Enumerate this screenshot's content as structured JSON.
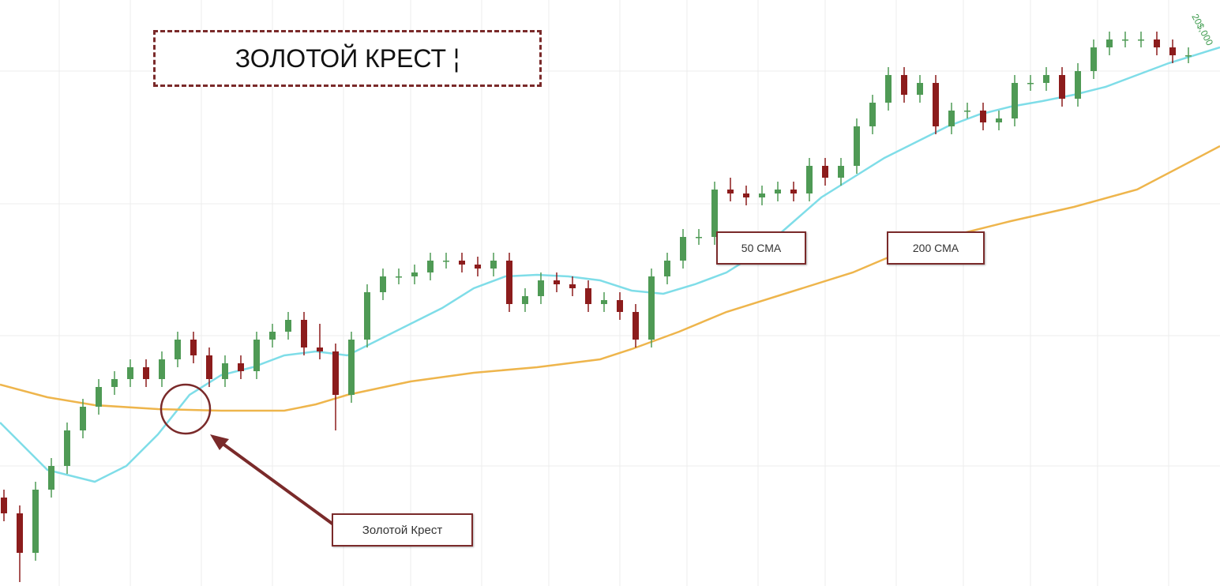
{
  "chart_data": {
    "type": "candlestick",
    "title": "ЗОЛОТОЙ КРЕСТ ¦",
    "corner_label": "20$,000",
    "xlim": [
      -0.25,
      77
    ],
    "ylim": [
      0,
      74.2
    ],
    "up_color": "#4f9a55",
    "down_color": "#8c1c1c",
    "candles": {
      "open": [
        11.2,
        9.2,
        4.2,
        12.2,
        15.2,
        19.7,
        22.7,
        25.2,
        26.2,
        27.7,
        26.2,
        28.7,
        31.2,
        29.2,
        26.2,
        28.2,
        27.2,
        31.2,
        32.2,
        33.7,
        30.2,
        29.7,
        24.2,
        31.2,
        37.2,
        39.2,
        39.2,
        39.7,
        41.2,
        41.2,
        40.7,
        40.2,
        41.2,
        35.7,
        36.7,
        38.7,
        38.2,
        37.7,
        35.7,
        36.2,
        34.7,
        31.2,
        39.2,
        41.2,
        44.2,
        44.2,
        50.2,
        49.7,
        49.2,
        49.7,
        50.2,
        49.7,
        53.2,
        51.7,
        53.2,
        58.2,
        61.2,
        64.7,
        62.2,
        63.7,
        58.2,
        60.2,
        60.2,
        58.7,
        59.2,
        63.7,
        63.7,
        64.7,
        61.7,
        65.2,
        68.2,
        69.2,
        69.2,
        69.2,
        68.2,
        67.2
      ],
      "high": [
        12.2,
        10.2,
        13.2,
        16.2,
        20.7,
        23.7,
        26.2,
        27.2,
        28.7,
        28.7,
        29.7,
        32.2,
        32.2,
        30.2,
        29.2,
        29.2,
        32.2,
        33.2,
        34.7,
        34.7,
        33.2,
        30.7,
        32.2,
        38.2,
        40.2,
        40.2,
        40.7,
        42.2,
        42.2,
        42.2,
        41.7,
        42.2,
        42.2,
        37.7,
        39.7,
        39.7,
        39.2,
        38.7,
        37.2,
        37.2,
        35.7,
        40.2,
        42.2,
        45.2,
        45.2,
        51.2,
        51.7,
        50.7,
        50.7,
        51.2,
        51.2,
        54.2,
        54.2,
        54.2,
        59.2,
        62.2,
        65.7,
        65.7,
        64.7,
        64.7,
        61.2,
        61.2,
        61.2,
        60.2,
        64.7,
        64.7,
        65.7,
        65.7,
        66.2,
        69.2,
        70.2,
        70.2,
        70.2,
        70.2,
        69.2,
        68.2
      ],
      "low": [
        8.2,
        0.5,
        3.2,
        11.2,
        14.2,
        18.7,
        21.7,
        24.2,
        25.2,
        25.2,
        25.2,
        27.7,
        28.2,
        25.2,
        25.2,
        26.2,
        26.2,
        30.2,
        31.2,
        29.2,
        28.7,
        19.7,
        23.2,
        30.2,
        36.2,
        38.2,
        38.2,
        38.7,
        40.2,
        39.7,
        39.2,
        39.2,
        34.7,
        34.7,
        35.7,
        37.2,
        36.7,
        34.7,
        34.7,
        33.7,
        30.2,
        30.2,
        38.2,
        40.2,
        43.2,
        43.2,
        48.7,
        48.2,
        48.2,
        48.7,
        48.7,
        48.7,
        50.7,
        50.7,
        52.2,
        57.2,
        60.2,
        61.2,
        61.2,
        57.2,
        57.2,
        59.2,
        57.7,
        57.7,
        58.2,
        62.7,
        62.7,
        60.7,
        60.7,
        64.2,
        67.2,
        68.2,
        68.2,
        67.2,
        66.2,
        66.2
      ],
      "close": [
        9.2,
        4.2,
        12.2,
        15.2,
        19.7,
        22.7,
        25.2,
        26.2,
        27.7,
        26.2,
        28.7,
        31.2,
        29.2,
        26.2,
        28.2,
        27.2,
        31.2,
        32.2,
        33.7,
        30.2,
        29.7,
        24.2,
        31.2,
        37.2,
        39.2,
        39.2,
        39.7,
        41.2,
        41.2,
        40.7,
        40.2,
        41.2,
        35.7,
        36.7,
        38.7,
        38.2,
        37.7,
        35.7,
        36.2,
        34.7,
        31.2,
        39.2,
        41.2,
        44.2,
        44.2,
        50.2,
        49.7,
        49.2,
        49.7,
        50.2,
        49.7,
        53.2,
        51.7,
        53.2,
        58.2,
        61.2,
        64.7,
        62.2,
        63.7,
        58.2,
        60.2,
        60.2,
        58.7,
        59.2,
        63.7,
        63.7,
        64.7,
        61.7,
        65.2,
        68.2,
        69.2,
        69.2,
        69.2,
        68.2,
        67.2,
        67.2
      ]
    },
    "series": [
      {
        "name": "50 СМА",
        "color": "#7fdde8",
        "x": [
          -0.25,
          2.75,
          5.75,
          7.75,
          9.75,
          11.75,
          13.75,
          15.75,
          17.75,
          19.75,
          21.75,
          23.75,
          25.75,
          27.75,
          29.75,
          31.75,
          33.75,
          35.75,
          37.75,
          39.75,
          41.75,
          43.75,
          45.75,
          47.75,
          49.75,
          51.75,
          53.75,
          55.75,
          57.75,
          59.75,
          61.75,
          63.75,
          65.75,
          67.75,
          69.75,
          71.75,
          73.75,
          77
        ],
        "values": [
          20.7,
          14.7,
          13.2,
          15.2,
          19.2,
          24.2,
          26.7,
          27.7,
          29.2,
          29.7,
          29.2,
          31.2,
          33.2,
          35.2,
          37.7,
          39.2,
          39.4,
          39.2,
          38.7,
          37.4,
          37.0,
          38.2,
          39.7,
          42.2,
          45.7,
          49.2,
          51.7,
          54.2,
          56.2,
          58.2,
          59.7,
          60.7,
          61.4,
          62.2,
          63.2,
          64.7,
          66.2,
          68.2
        ]
      },
      {
        "name": "200 СМА",
        "color": "#eeb54c",
        "x": [
          -0.25,
          2.75,
          5.75,
          9.75,
          13.75,
          17.75,
          19.75,
          21.75,
          25.75,
          29.75,
          33.75,
          37.75,
          39.75,
          42.75,
          45.75,
          49.75,
          53.75,
          55.75,
          57.75,
          59.75,
          63.75,
          67.75,
          71.75,
          77
        ],
        "values": [
          25.5,
          23.9,
          22.9,
          22.4,
          22.2,
          22.2,
          23.0,
          24.2,
          25.9,
          27.0,
          27.7,
          28.7,
          30.0,
          32.2,
          34.7,
          37.2,
          39.7,
          41.4,
          43.0,
          44.2,
          46.2,
          48.0,
          50.2,
          55.7
        ]
      }
    ],
    "annotations": [
      "Золотой Крест"
    ]
  }
}
